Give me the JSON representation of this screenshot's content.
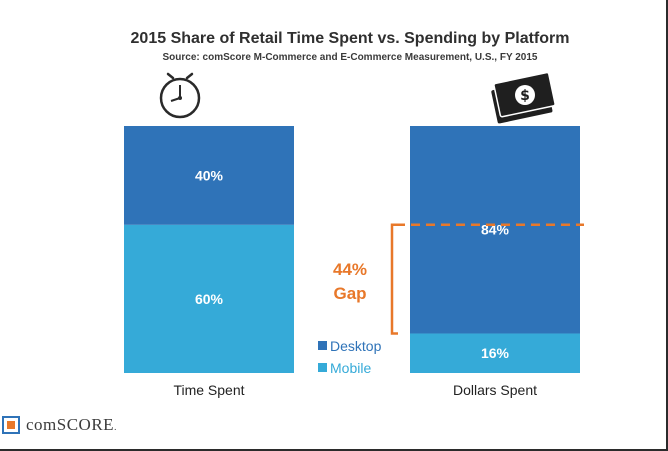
{
  "chart_data": {
    "type": "bar",
    "stacked": true,
    "title": "2015 Share of Retail Time Spent vs. Spending by Platform",
    "subtitle": "Source: comScore M-Commerce and E-Commerce Measurement, U.S., FY 2015",
    "categories": [
      "Time Spent",
      "Dollars Spent"
    ],
    "series": [
      {
        "name": "Mobile",
        "values": [
          60,
          16
        ],
        "labels": [
          "60%",
          "16%"
        ],
        "color": "#35aad8"
      },
      {
        "name": "Desktop",
        "values": [
          40,
          84
        ],
        "labels": [
          "40%",
          "84%"
        ],
        "color": "#2f73b8"
      }
    ],
    "ylim": [
      0,
      100
    ],
    "annotation": {
      "line1": "44%",
      "line2": "Gap",
      "color": "#e8782a",
      "from": 40,
      "to": 84
    }
  },
  "legend": {
    "items": [
      {
        "label": "Desktop",
        "color": "#2f73b8"
      },
      {
        "label": "Mobile",
        "color": "#35aad8"
      }
    ]
  },
  "icons": {
    "time": "clock-icon",
    "dollars": "money-icon",
    "logo": "comscore-logo-icon"
  },
  "branding": {
    "logo_text": "comSCORE",
    "logo_suffix": "."
  }
}
